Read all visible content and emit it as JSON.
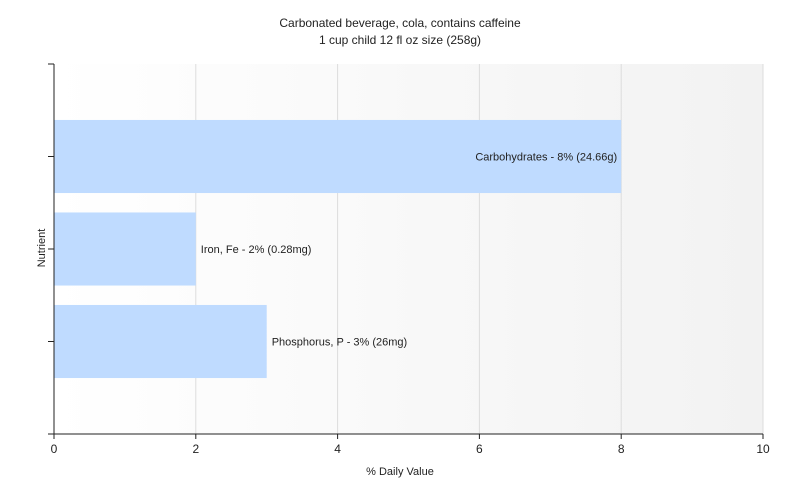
{
  "chart_data": {
    "type": "bar",
    "orientation": "horizontal",
    "title": "Carbonated beverage, cola, contains caffeine",
    "subtitle": "1 cup child 12 fl oz size (258g)",
    "xlabel": "% Daily Value",
    "ylabel": "Nutrient",
    "xlim": [
      0,
      10
    ],
    "xticks": [
      0,
      2,
      4,
      6,
      8,
      10
    ],
    "grid": true,
    "categories": [
      "Carbohydrates",
      "Iron, Fe",
      "Phosphorus, P"
    ],
    "values": [
      8,
      2,
      3
    ],
    "labels": [
      "Carbohydrates - 8% (24.66g)",
      "Iron, Fe - 2% (0.28mg)",
      "Phosphorus, P - 3% (26mg)"
    ],
    "bar_color": "#bfdbff"
  }
}
